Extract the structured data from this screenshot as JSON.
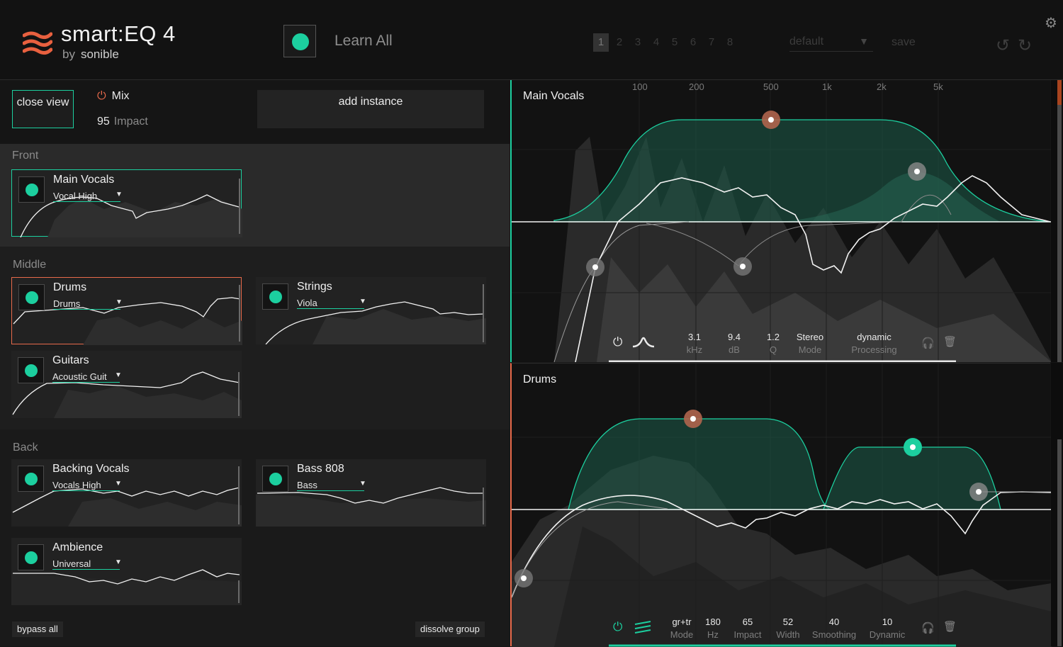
{
  "header": {
    "logo_title": "smart:EQ 4",
    "logo_by": "by",
    "logo_brand": "sonible",
    "learn_label": "Learn All",
    "slots": [
      "1",
      "2",
      "3",
      "4",
      "5",
      "6",
      "7",
      "8"
    ],
    "preset": "default",
    "save_label": "save"
  },
  "topbar": {
    "close_view": "close view",
    "mix_label": "Mix",
    "impact_value": "95",
    "impact_label": "Impact",
    "add_instance": "add instance"
  },
  "groups": [
    {
      "label": "Front",
      "cards": [
        {
          "name": "Main Vocals",
          "preset": "Vocal High"
        }
      ]
    },
    {
      "label": "Middle",
      "cards": [
        {
          "name": "Drums",
          "preset": "Drums"
        },
        {
          "name": "Strings",
          "preset": "Viola"
        },
        {
          "name": "Guitars",
          "preset": "Acoustic Guit"
        }
      ]
    },
    {
      "label": "Back",
      "cards": [
        {
          "name": "Backing Vocals",
          "preset": "Vocals High"
        },
        {
          "name": "Bass 808",
          "preset": "Bass"
        },
        {
          "name": "Ambience",
          "preset": "Universal"
        }
      ]
    }
  ],
  "footer": {
    "bypass_all": "bypass all",
    "dissolve_group": "dissolve group"
  },
  "freq_labels": [
    "100",
    "200",
    "500",
    "1k",
    "2k",
    "5k"
  ],
  "pane_top": {
    "title": "Main Vocals",
    "controls": [
      {
        "value": "3.1",
        "label": "kHz"
      },
      {
        "value": "9.4",
        "label": "dB"
      },
      {
        "value": "1.2",
        "label": "Q"
      },
      {
        "value": "Stereo",
        "label": "Mode"
      },
      {
        "value": "dynamic",
        "label": "Processing"
      }
    ]
  },
  "pane_bottom": {
    "title": "Drums",
    "controls": [
      {
        "value": "gr+tr",
        "label": "Mode"
      },
      {
        "value": "180",
        "label": "Hz"
      },
      {
        "value": "65",
        "label": "Impact"
      },
      {
        "value": "52",
        "label": "Width"
      },
      {
        "value": "40",
        "label": "Smoothing"
      },
      {
        "value": "10",
        "label": "Dynamic"
      }
    ]
  },
  "colors": {
    "accent": "#1ccf9f",
    "orange": "#e86a4b",
    "panel": "#1a1a1a"
  }
}
